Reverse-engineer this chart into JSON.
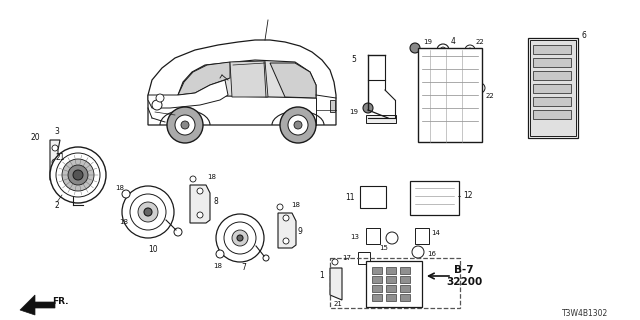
{
  "bg_color": "#ffffff",
  "line_color": "#1a1a1a",
  "text_color": "#111111",
  "part_number": "T3W4B1302",
  "figsize": [
    6.4,
    3.2
  ],
  "dpi": 100
}
